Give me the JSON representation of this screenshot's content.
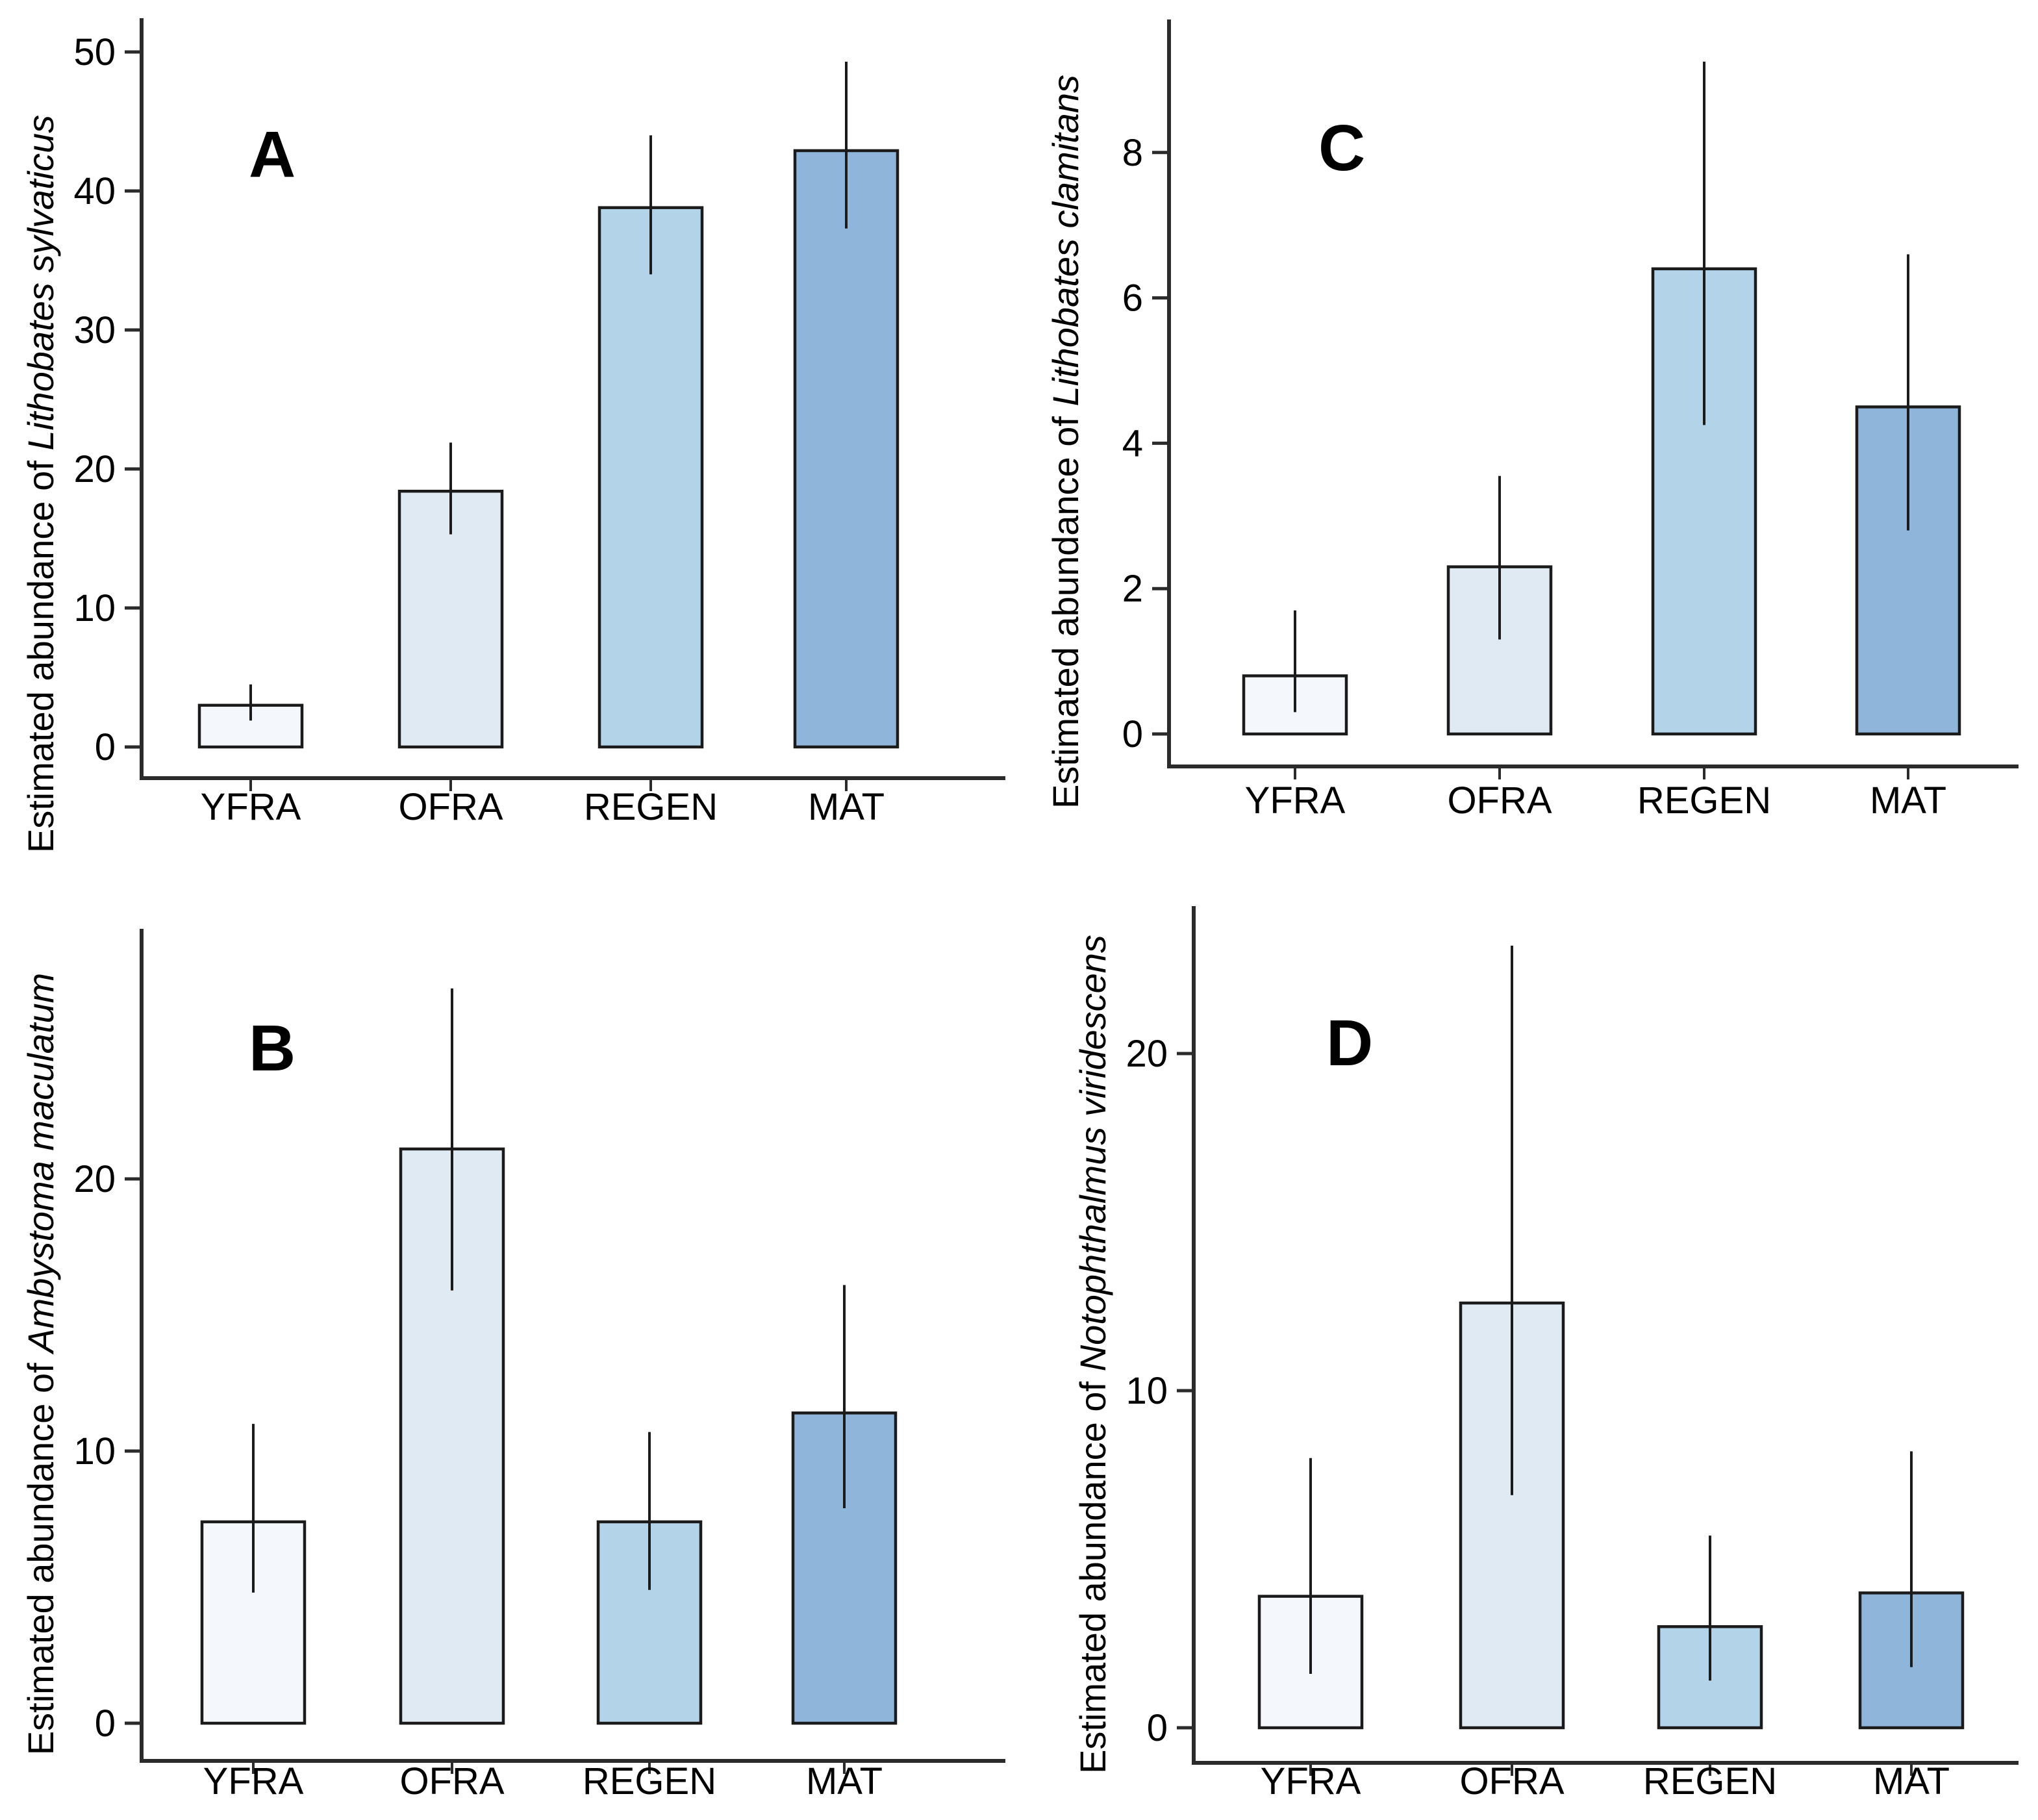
{
  "figure": {
    "description": "Four-panel bar chart of estimated amphibian abundance by forest treatment",
    "ylabel_prefix": "Estimated abundance of ",
    "categories": [
      "YFRA",
      "OFRA",
      "REGEN",
      "MAT"
    ],
    "style": {
      "background": "#ffffff",
      "axis_color": "#2b2b2b",
      "bar_border_color": "#1b1b1b",
      "error_bar_color": "#1b1b1b",
      "text_color": "#000000",
      "bar_colors": [
        "#f4f7fc",
        "#dfeaf2",
        "#b3d3e9",
        "#8fb5db"
      ]
    }
  },
  "chart_data": [
    {
      "type": "bar",
      "panel_letter": "A",
      "title": "",
      "ylabel": "Estimated abundance of Lithobates sylvaticus",
      "ylabel_prefix": "Estimated abundance of ",
      "species_italic": "Lithobates sylvaticus",
      "xlabel": "",
      "categories": [
        "YFRA",
        "OFRA",
        "REGEN",
        "MAT"
      ],
      "values": [
        3.0,
        18.4,
        38.8,
        42.9
      ],
      "error_low": [
        1.9,
        15.3,
        34.0,
        37.3
      ],
      "error_high": [
        4.5,
        21.9,
        44.0,
        49.3
      ],
      "yticks": [
        0,
        10,
        20,
        30,
        40,
        50
      ],
      "ylim": [
        0,
        52.4
      ],
      "grid": "off",
      "legend": "none",
      "bar_colors": [
        "#f4f7fc",
        "#dfeaf2",
        "#b3d3e9",
        "#8fb5db"
      ]
    },
    {
      "type": "bar",
      "panel_letter": "B",
      "title": "",
      "ylabel": "Estimated abundance of Ambystoma maculatum",
      "ylabel_prefix": "Estimated abundance of ",
      "species_italic": "Ambystoma maculatum",
      "xlabel": "",
      "categories": [
        "YFRA",
        "OFRA",
        "REGEN",
        "MAT"
      ],
      "values": [
        7.4,
        21.1,
        7.4,
        11.4
      ],
      "error_low": [
        4.8,
        15.9,
        4.9,
        7.9
      ],
      "error_high": [
        11.0,
        27.0,
        10.7,
        16.1
      ],
      "yticks": [
        0,
        10,
        20
      ],
      "ylim": [
        0,
        29.2
      ],
      "grid": "off",
      "legend": "none",
      "bar_colors": [
        "#f4f7fc",
        "#dfeaf2",
        "#b3d3e9",
        "#8fb5db"
      ]
    },
    {
      "type": "bar",
      "panel_letter": "C",
      "title": "",
      "ylabel": "Estimated abundance of Lithobates clamitans",
      "ylabel_prefix": "Estimated abundance of ",
      "species_italic": "Lithobates clamitans",
      "xlabel": "",
      "categories": [
        "YFRA",
        "OFRA",
        "REGEN",
        "MAT"
      ],
      "values": [
        0.8,
        2.3,
        6.4,
        4.5
      ],
      "error_low": [
        0.3,
        1.3,
        4.25,
        2.8
      ],
      "error_high": [
        1.7,
        3.55,
        9.25,
        6.6
      ],
      "yticks": [
        0,
        2,
        4,
        6,
        8
      ],
      "ylim": [
        0,
        9.85
      ],
      "grid": "off",
      "legend": "none",
      "bar_colors": [
        "#f4f7fc",
        "#dfeaf2",
        "#b3d3e9",
        "#8fb5db"
      ]
    },
    {
      "type": "bar",
      "panel_letter": "D",
      "title": "",
      "ylabel": "Estimated abundance of Notophthalmus viridescens",
      "ylabel_prefix": "Estimated abundance of ",
      "species_italic": "Notophthalmus viridescens",
      "xlabel": "",
      "categories": [
        "YFRA",
        "OFRA",
        "REGEN",
        "MAT"
      ],
      "values": [
        3.9,
        12.6,
        3.0,
        4.0
      ],
      "error_low": [
        1.6,
        6.9,
        1.4,
        1.8
      ],
      "error_high": [
        8.0,
        23.2,
        5.7,
        8.2
      ],
      "yticks": [
        0,
        10,
        20
      ],
      "ylim": [
        0,
        24.4
      ],
      "grid": "off",
      "legend": "none",
      "bar_colors": [
        "#f4f7fc",
        "#dfeaf2",
        "#b3d3e9",
        "#8fb5db"
      ]
    }
  ]
}
